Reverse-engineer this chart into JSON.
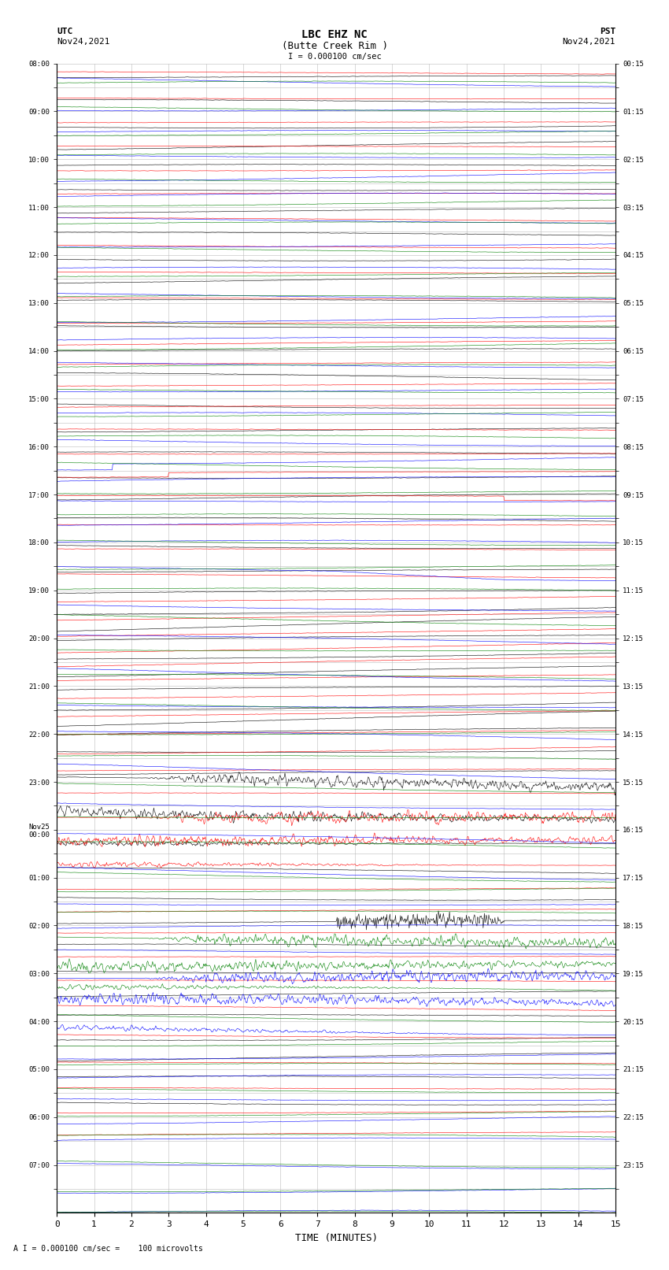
{
  "title_line1": "LBC EHZ NC",
  "title_line2": "(Butte Creek Rim )",
  "scale_label": "I = 0.000100 cm/sec",
  "footer_label": "A I = 0.000100 cm/sec =    100 microvolts",
  "xlabel": "TIME (MINUTES)",
  "left_times_utc": [
    "08:00",
    "",
    "09:00",
    "",
    "10:00",
    "",
    "11:00",
    "",
    "12:00",
    "",
    "13:00",
    "",
    "14:00",
    "",
    "15:00",
    "",
    "16:00",
    "",
    "17:00",
    "",
    "18:00",
    "",
    "19:00",
    "",
    "20:00",
    "",
    "21:00",
    "",
    "22:00",
    "",
    "23:00",
    "",
    "Nov25\n00:00",
    "",
    "01:00",
    "",
    "02:00",
    "",
    "03:00",
    "",
    "04:00",
    "",
    "05:00",
    "",
    "06:00",
    "",
    "07:00",
    ""
  ],
  "right_times_pst": [
    "00:15",
    "",
    "01:15",
    "",
    "02:15",
    "",
    "03:15",
    "",
    "04:15",
    "",
    "05:15",
    "",
    "06:15",
    "",
    "07:15",
    "",
    "08:15",
    "",
    "09:15",
    "",
    "10:15",
    "",
    "11:15",
    "",
    "12:15",
    "",
    "13:15",
    "",
    "14:15",
    "",
    "15:15",
    "",
    "16:15",
    "",
    "17:15",
    "",
    "18:15",
    "",
    "19:15",
    "",
    "20:15",
    "",
    "21:15",
    "",
    "22:15",
    "",
    "23:15",
    ""
  ],
  "num_rows": 48,
  "colors": [
    "black",
    "red",
    "blue",
    "green"
  ],
  "bg_color": "white",
  "grid_color": "#bbbbbb",
  "fig_width": 8.5,
  "fig_height": 16.13,
  "dpi": 100
}
